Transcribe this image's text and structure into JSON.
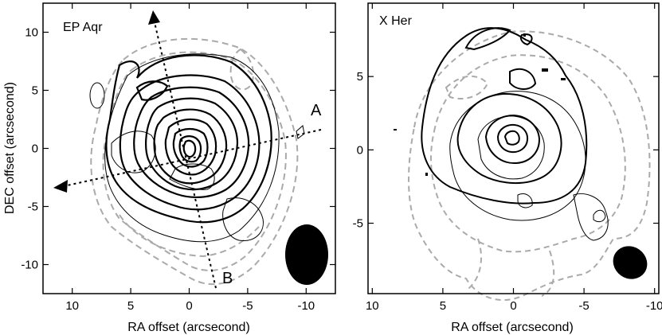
{
  "figure": {
    "panels": [
      {
        "id": "ep-aqr",
        "name": "EP Aqr",
        "xlabel": "RA offset (arcsecond)",
        "ylabel": "DEC offset (arcsecond)",
        "xticks": [
          "10",
          "5",
          "0",
          "-5",
          "-10"
        ],
        "yticks": [
          "10",
          "5",
          "0",
          "-5",
          "-10"
        ],
        "cut_labels": [
          "A",
          "B"
        ]
      },
      {
        "id": "x-her",
        "name": "X Her",
        "xlabel": "RA offset (arcsecond)",
        "ylabel": "",
        "xticks": [
          "10",
          "5",
          "0",
          "-5",
          "-10"
        ],
        "yticks": [
          "5",
          "0",
          "-5"
        ],
        "cut_labels": []
      }
    ],
    "colors": {
      "contour_thick": "#000000",
      "contour_thin": "#000000",
      "contour_dashed": "#aaaaaa",
      "beam": "#000000",
      "cut_line": "#000000"
    }
  },
  "chart_data": [
    {
      "type": "contour",
      "title": "EP Aqr",
      "xlabel": "RA offset (arcsecond)",
      "ylabel": "DEC offset (arcsecond)",
      "xlim": [
        12.5,
        -12.5
      ],
      "ylim": [
        -12.5,
        12.5
      ],
      "x_reversed": true,
      "xticks": [
        10,
        5,
        0,
        -5,
        -10
      ],
      "yticks": [
        10,
        5,
        0,
        -5,
        -10
      ],
      "cuts": [
        {
          "label": "A",
          "from": [
            -10.5,
            1.8
          ],
          "to": [
            10.5,
            -3.8
          ]
        },
        {
          "label": "B",
          "from": [
            -2.3,
            -11.8
          ],
          "to": [
            3.5,
            11.2
          ]
        }
      ],
      "beam": {
        "center": [
          -9.5,
          -8.8
        ],
        "major": 7.0,
        "minor": 5.0
      }
    },
    {
      "type": "contour",
      "title": "X Her",
      "xlabel": "RA offset (arcsecond)",
      "ylabel": "",
      "xlim": [
        10.3,
        -10.3
      ],
      "ylim": [
        -9.8,
        10.0
      ],
      "x_reversed": true,
      "xticks": [
        10,
        5,
        0,
        -5,
        -10
      ],
      "yticks": [
        5,
        0,
        -5
      ],
      "beam": {
        "center": [
          -8.2,
          -8.3
        ],
        "major": 4.0,
        "minor": 3.2
      }
    }
  ]
}
